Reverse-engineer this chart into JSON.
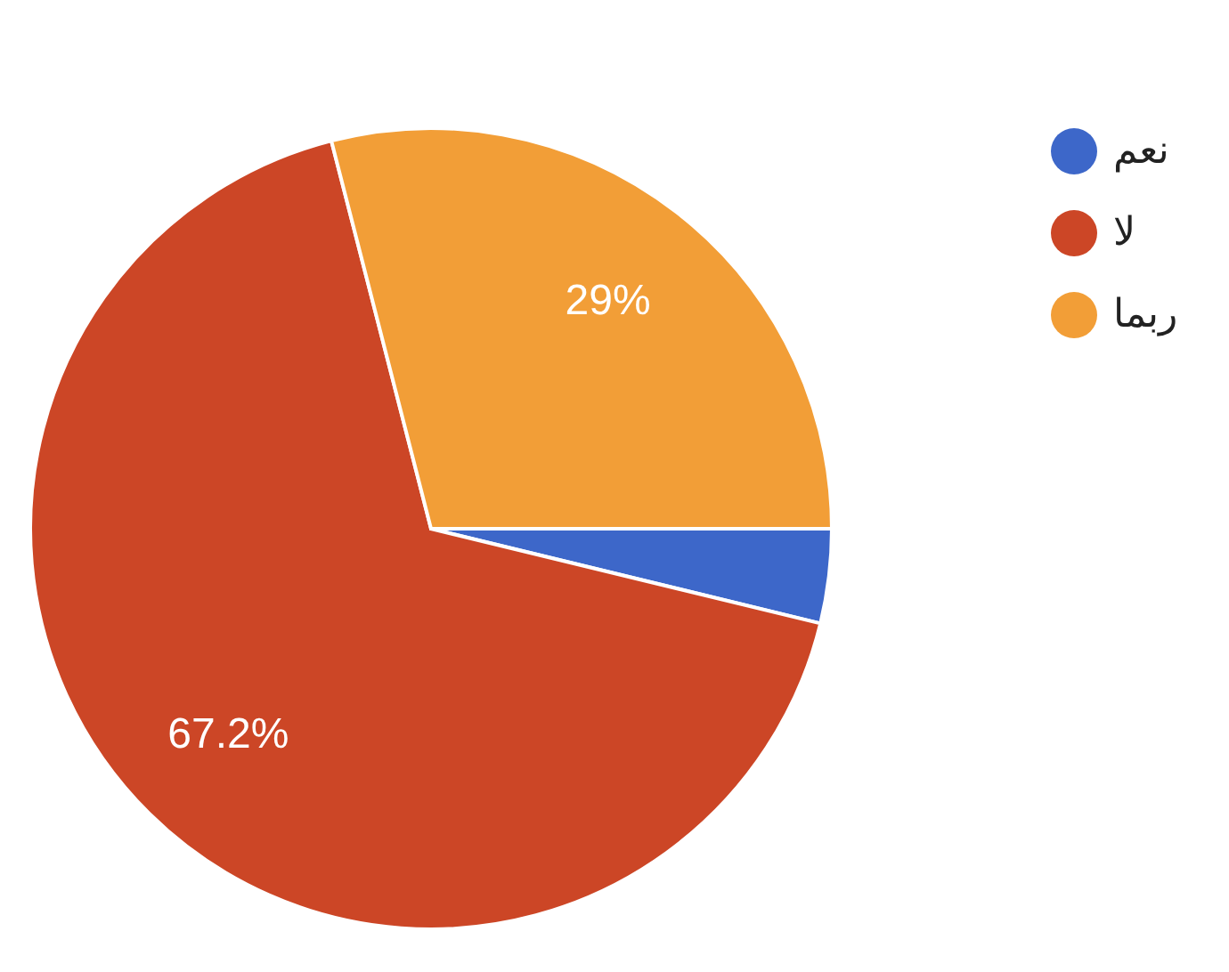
{
  "chart_data": {
    "type": "pie",
    "categories": [
      "نعم",
      "لا",
      "ربما"
    ],
    "values": [
      3.8,
      67.2,
      29
    ],
    "colors": [
      "#3d67c9",
      "#cc4626",
      "#f29e37"
    ],
    "value_labels": [
      null,
      "67.2%",
      "29%"
    ],
    "legend": "top right"
  }
}
